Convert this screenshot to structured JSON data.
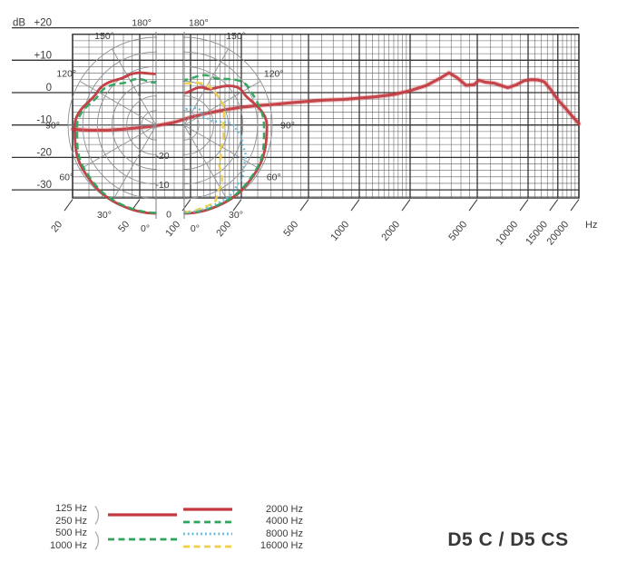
{
  "title": "D5 C / D5 CS",
  "colors": {
    "red": "#c23a40",
    "green": "#2fa45c",
    "blue": "#5db8d9",
    "yellow": "#f0d04b",
    "grid_dark": "#333333",
    "grid_thin": "#5d5d5d",
    "polar_grid": "#8d9296",
    "text": "#3c3c3c"
  },
  "chart_data": [
    {
      "type": "line",
      "name": "frequency-response",
      "ylabel": "dB",
      "x_unit": "Hz",
      "x_scale": "log",
      "xlim": [
        20,
        20000
      ],
      "ylim_box": [
        -32.5,
        18
      ],
      "grid": true,
      "y_ticks": [
        {
          "db": 20,
          "label": "+20"
        },
        {
          "db": 10,
          "label": "+10"
        },
        {
          "db": 0,
          "label": "0"
        },
        {
          "db": -10,
          "label": "-10"
        },
        {
          "db": -20,
          "label": "-20"
        },
        {
          "db": -30,
          "label": "-30"
        }
      ],
      "x_ticks": [
        {
          "f": 20,
          "label": "20"
        },
        {
          "f": 50,
          "label": "50"
        },
        {
          "f": 100,
          "label": "100"
        },
        {
          "f": 200,
          "label": "200"
        },
        {
          "f": 500,
          "label": "500"
        },
        {
          "f": 1000,
          "label": "1000"
        },
        {
          "f": 2000,
          "label": "2000"
        },
        {
          "f": 5000,
          "label": "5000"
        },
        {
          "f": 10000,
          "label": "10000"
        },
        {
          "f": 15000,
          "label": "15000"
        },
        {
          "f": 20000,
          "label": "20000"
        }
      ],
      "series": [
        {
          "name": "on-axis frequency response",
          "color": "#c23a40",
          "points": [
            [
              20,
              -11.3
            ],
            [
              25,
              -11.6
            ],
            [
              32,
              -11.6
            ],
            [
              40,
              -11.3
            ],
            [
              50,
              -10.8
            ],
            [
              63,
              -10.2
            ],
            [
              80,
              -9.2
            ],
            [
              100,
              -7.6
            ],
            [
              125,
              -6.4
            ],
            [
              160,
              -5.3
            ],
            [
              200,
              -4.5
            ],
            [
              250,
              -4.0
            ],
            [
              315,
              -3.6
            ],
            [
              400,
              -3.1
            ],
            [
              500,
              -2.7
            ],
            [
              630,
              -2.3
            ],
            [
              800,
              -2.1
            ],
            [
              1000,
              -1.7
            ],
            [
              1250,
              -1.3
            ],
            [
              1600,
              -0.6
            ],
            [
              2000,
              0.6
            ],
            [
              2500,
              2.2
            ],
            [
              3000,
              4.4
            ],
            [
              3400,
              6.1
            ],
            [
              3800,
              4.6
            ],
            [
              4300,
              2.2
            ],
            [
              4800,
              2.5
            ],
            [
              5100,
              3.8
            ],
            [
              5600,
              3.2
            ],
            [
              6300,
              2.9
            ],
            [
              7000,
              2.1
            ],
            [
              7600,
              1.5
            ],
            [
              8500,
              2.4
            ],
            [
              9500,
              3.7
            ],
            [
              10500,
              4.0
            ],
            [
              11500,
              3.9
            ],
            [
              12500,
              3.3
            ],
            [
              13500,
              1.2
            ],
            [
              15000,
              -2.2
            ],
            [
              16500,
              -4.6
            ],
            [
              18000,
              -6.9
            ],
            [
              20000,
              -9.6
            ]
          ]
        }
      ]
    },
    {
      "type": "polar",
      "name": "polar-pattern-low-frequencies",
      "side": "left",
      "db_rings": [
        0,
        -5,
        -10,
        -15,
        -20,
        -25
      ],
      "db_min": -30,
      "angle_ticks": [
        "0°",
        "30°",
        "60°",
        "90°",
        "120°",
        "150°",
        "180°"
      ],
      "series": [
        {
          "name": "125 Hz / 250 Hz",
          "style": "solid",
          "color": "#c23a40",
          "points": [
            [
              0,
              0
            ],
            [
              30,
              -0.3
            ],
            [
              60,
              -0.9
            ],
            [
              90,
              -2.3
            ],
            [
              120,
              -7
            ],
            [
              150,
              -10.5
            ],
            [
              180,
              -12.5
            ]
          ]
        },
        {
          "name": "500 Hz / 1000 Hz",
          "style": "dashed",
          "color": "#2fa45c",
          "points": [
            [
              0,
              -0.2
            ],
            [
              30,
              -0.6
            ],
            [
              60,
              -1.4
            ],
            [
              90,
              -3.1
            ],
            [
              120,
              -8
            ],
            [
              150,
              -12.5
            ],
            [
              180,
              -15.5
            ]
          ]
        }
      ]
    },
    {
      "type": "polar",
      "name": "polar-pattern-high-frequencies",
      "side": "right",
      "db_rings": [
        0,
        -5,
        -10,
        -15,
        -20,
        -25
      ],
      "db_min": -30,
      "angle_ticks": [
        "0°",
        "30°",
        "60°",
        "90°",
        "120°",
        "150°",
        "180°"
      ],
      "ring_labels": [
        {
          "text": "-20",
          "db": -20
        },
        {
          "text": "-10",
          "db": -10
        },
        {
          "text": "0",
          "db": 0
        }
      ],
      "series": [
        {
          "name": "2000 Hz",
          "style": "solid",
          "color": "#c23a40",
          "points": [
            [
              0,
              0
            ],
            [
              30,
              -0.3
            ],
            [
              60,
              -0.9
            ],
            [
              90,
              -1.8
            ],
            [
              120,
              -7
            ],
            [
              150,
              -15.5
            ],
            [
              180,
              -19
            ]
          ]
        },
        {
          "name": "4000 Hz",
          "style": "dashed",
          "color": "#2fa45c",
          "points": [
            [
              0,
              -0.2
            ],
            [
              30,
              -0.5
            ],
            [
              60,
              -1.2
            ],
            [
              90,
              -2.8
            ],
            [
              120,
              -4.5
            ],
            [
              150,
              -11
            ],
            [
              180,
              -14.5
            ]
          ]
        },
        {
          "name": "16000 Hz",
          "style": "dashed",
          "color": "#f0d04b",
          "points": [
            [
              0,
              -0.5
            ],
            [
              20,
              -1.5
            ],
            [
              30,
              -5.5
            ],
            [
              45,
              -13
            ],
            [
              60,
              -15.5
            ],
            [
              90,
              -16.8
            ],
            [
              120,
              -15
            ],
            [
              150,
              -14.3
            ],
            [
              180,
              -15.8
            ]
          ]
        },
        {
          "name": "8000 Hz",
          "style": "dotted",
          "color": "#5db8d9",
          "points": [
            [
              0,
              -0.3
            ],
            [
              30,
              -1.2
            ],
            [
              45,
              -3
            ],
            [
              60,
              -6
            ],
            [
              75,
              -9.5
            ],
            [
              90,
              -13
            ],
            [
              100,
              -21
            ],
            [
              115,
              -23
            ],
            [
              135,
              -22.5
            ],
            [
              160,
              -23.5
            ],
            [
              180,
              -24.8
            ]
          ]
        }
      ]
    }
  ],
  "legend": {
    "left": {
      "labels": [
        "125 Hz",
        "250 Hz",
        "500 Hz",
        "1000 Hz"
      ],
      "entries": [
        {
          "group": "125 Hz / 250 Hz",
          "style": "solid",
          "color": "#c23a40"
        },
        {
          "group": "500 Hz / 1000 Hz",
          "style": "dashed",
          "color": "#2fa45c"
        }
      ]
    },
    "right": {
      "entries": [
        {
          "label": "2000 Hz",
          "style": "solid",
          "color": "#c23a40"
        },
        {
          "label": "4000 Hz",
          "style": "dashed",
          "color": "#2fa45c"
        },
        {
          "label": "8000 Hz",
          "style": "dotted",
          "color": "#5db8d9"
        },
        {
          "label": "16000 Hz",
          "style": "dashed",
          "color": "#f0d04b"
        }
      ]
    }
  }
}
